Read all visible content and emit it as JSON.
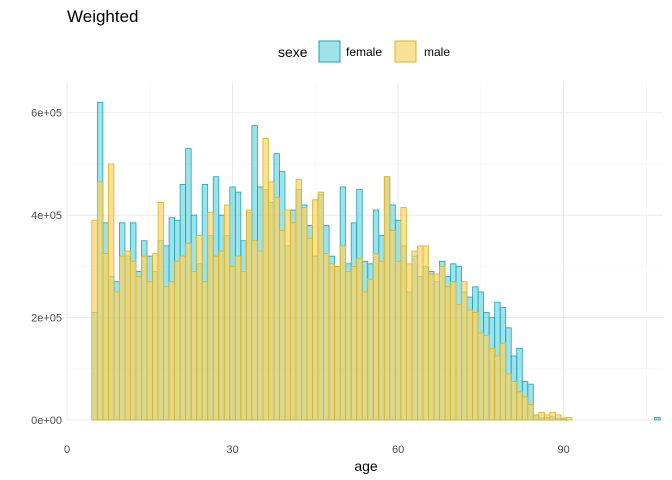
{
  "chart_data": {
    "type": "bar",
    "title": "Weighted",
    "xlabel": "age",
    "ylabel": "",
    "xlim": [
      0,
      108
    ],
    "ylim": [
      0,
      660000
    ],
    "bin_width": 1,
    "x_ticks": [
      {
        "value": 0,
        "label": "0"
      },
      {
        "value": 30,
        "label": "30"
      },
      {
        "value": 60,
        "label": "60"
      },
      {
        "value": 90,
        "label": "90"
      }
    ],
    "y_ticks": [
      {
        "value": 0,
        "label": "0e+00"
      },
      {
        "value": 200000,
        "label": "2e+05"
      },
      {
        "value": 400000,
        "label": "4e+05"
      },
      {
        "value": 600000,
        "label": "6e+05"
      }
    ],
    "grid": true,
    "legend": {
      "title": "sexe",
      "position": "top",
      "entries": [
        {
          "name": "female",
          "fill": "#3cc8d4",
          "stroke": "#1aa3b7"
        },
        {
          "name": "male",
          "fill": "#f5d36a",
          "stroke": "#e0b21a"
        }
      ]
    },
    "x": [
      5,
      6,
      7,
      8,
      9,
      10,
      11,
      12,
      13,
      14,
      15,
      16,
      17,
      18,
      19,
      20,
      21,
      22,
      23,
      24,
      25,
      26,
      27,
      28,
      29,
      30,
      31,
      32,
      33,
      34,
      35,
      36,
      37,
      38,
      39,
      40,
      41,
      42,
      43,
      44,
      45,
      46,
      47,
      48,
      49,
      50,
      51,
      52,
      53,
      54,
      55,
      56,
      57,
      58,
      59,
      60,
      61,
      62,
      63,
      64,
      65,
      66,
      67,
      68,
      69,
      70,
      71,
      72,
      73,
      74,
      75,
      76,
      77,
      78,
      79,
      80,
      81,
      82,
      83,
      84,
      85,
      86,
      87,
      88,
      89,
      90,
      91,
      92,
      93,
      94,
      95,
      96,
      97,
      98,
      99,
      100,
      101,
      102,
      103,
      104,
      105,
      106,
      107
    ],
    "series": [
      {
        "name": "female",
        "values": [
          210000,
          620000,
          385000,
          280000,
          270000,
          385000,
          320000,
          385000,
          290000,
          350000,
          320000,
          290000,
          350000,
          340000,
          395000,
          390000,
          460000,
          530000,
          400000,
          305000,
          460000,
          360000,
          475000,
          400000,
          360000,
          455000,
          445000,
          350000,
          405000,
          575000,
          455000,
          450000,
          425000,
          520000,
          485000,
          340000,
          410000,
          450000,
          420000,
          380000,
          320000,
          440000,
          380000,
          320000,
          300000,
          455000,
          305000,
          385000,
          450000,
          310000,
          305000,
          410000,
          360000,
          475000,
          420000,
          390000,
          340000,
          250000,
          320000,
          280000,
          300000,
          290000,
          270000,
          310000,
          280000,
          305000,
          300000,
          250000,
          240000,
          260000,
          250000,
          210000,
          200000,
          230000,
          220000,
          180000,
          125000,
          140000,
          75000,
          70000,
          10000,
          4000,
          5000,
          6000,
          3000,
          2000,
          0,
          0,
          0,
          0,
          0,
          0,
          0,
          0,
          0,
          0,
          0,
          0,
          0,
          0,
          0,
          0,
          5000
        ]
      },
      {
        "name": "male",
        "values": [
          390000,
          465000,
          325000,
          500000,
          250000,
          320000,
          330000,
          310000,
          280000,
          320000,
          270000,
          325000,
          425000,
          260000,
          270000,
          310000,
          320000,
          345000,
          290000,
          360000,
          270000,
          405000,
          320000,
          330000,
          420000,
          300000,
          320000,
          290000,
          410000,
          350000,
          330000,
          550000,
          465000,
          435000,
          370000,
          410000,
          385000,
          470000,
          415000,
          355000,
          430000,
          445000,
          325000,
          305000,
          300000,
          340000,
          290000,
          300000,
          315000,
          250000,
          275000,
          325000,
          310000,
          475000,
          370000,
          310000,
          415000,
          305000,
          330000,
          340000,
          340000,
          285000,
          285000,
          300000,
          260000,
          270000,
          225000,
          270000,
          215000,
          210000,
          170000,
          165000,
          140000,
          125000,
          150000,
          90000,
          75000,
          55000,
          45000,
          30000,
          10000,
          15000,
          10000,
          15000,
          10000,
          4000,
          5000,
          0,
          0,
          0,
          0,
          0,
          0,
          0,
          0,
          0,
          0,
          0,
          0,
          0,
          0,
          0,
          0
        ]
      }
    ]
  }
}
